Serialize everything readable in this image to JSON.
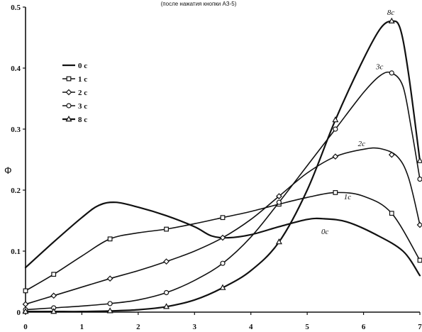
{
  "chart_data": {
    "type": "line",
    "title": "(после нажатия кнопки АЗ-5)",
    "xlabel": "",
    "ylabel": "Ф",
    "xlim": [
      0,
      7
    ],
    "ylim": [
      0,
      0.5
    ],
    "x_ticks": [
      "0",
      "1",
      "2",
      "3",
      "4",
      "5",
      "6",
      "7"
    ],
    "y_ticks": [
      "0",
      "0.1",
      "0.2",
      "0.3",
      "0.4",
      "0.5"
    ],
    "grid": false,
    "legend_position": "left",
    "series": [
      {
        "name": "0 с",
        "tag": "0с",
        "marker": "none",
        "width": 2.2,
        "points": [
          [
            0,
            0.073
          ],
          [
            0.5,
            0.115
          ],
          [
            1,
            0.155
          ],
          [
            1.3,
            0.175
          ],
          [
            1.6,
            0.18
          ],
          [
            2,
            0.172
          ],
          [
            2.5,
            0.158
          ],
          [
            3,
            0.14
          ],
          [
            3.3,
            0.125
          ],
          [
            3.6,
            0.122
          ],
          [
            4,
            0.127
          ],
          [
            4.5,
            0.14
          ],
          [
            5,
            0.152
          ],
          [
            5.3,
            0.153
          ],
          [
            5.7,
            0.148
          ],
          [
            6.2,
            0.128
          ],
          [
            6.7,
            0.1
          ],
          [
            7,
            0.06
          ]
        ],
        "markers": []
      },
      {
        "name": "1 с",
        "tag": "1с",
        "marker": "square",
        "width": 1.6,
        "points": [
          [
            0,
            0.035
          ],
          [
            0.5,
            0.062
          ],
          [
            1,
            0.092
          ],
          [
            1.5,
            0.12
          ],
          [
            2,
            0.13
          ],
          [
            2.5,
            0.136
          ],
          [
            3,
            0.145
          ],
          [
            3.5,
            0.155
          ],
          [
            4,
            0.165
          ],
          [
            4.5,
            0.177
          ],
          [
            5,
            0.188
          ],
          [
            5.5,
            0.196
          ],
          [
            6,
            0.19
          ],
          [
            6.5,
            0.162
          ],
          [
            7,
            0.085
          ]
        ],
        "markers": [
          [
            0,
            0.035
          ],
          [
            0.5,
            0.062
          ],
          [
            1.5,
            0.12
          ],
          [
            2.5,
            0.136
          ],
          [
            3.5,
            0.155
          ],
          [
            4.5,
            0.177
          ],
          [
            5.5,
            0.196
          ],
          [
            6.5,
            0.162
          ],
          [
            7,
            0.085
          ]
        ]
      },
      {
        "name": "2 с",
        "tag": "2с",
        "marker": "diamond",
        "width": 1.6,
        "points": [
          [
            0,
            0.013
          ],
          [
            0.5,
            0.027
          ],
          [
            1,
            0.041
          ],
          [
            1.5,
            0.055
          ],
          [
            2,
            0.068
          ],
          [
            2.5,
            0.083
          ],
          [
            3,
            0.1
          ],
          [
            3.5,
            0.122
          ],
          [
            4,
            0.152
          ],
          [
            4.5,
            0.19
          ],
          [
            5,
            0.228
          ],
          [
            5.5,
            0.255
          ],
          [
            6,
            0.267
          ],
          [
            6.3,
            0.268
          ],
          [
            6.6,
            0.255
          ],
          [
            6.8,
            0.22
          ],
          [
            7,
            0.143
          ]
        ],
        "markers": [
          [
            0,
            0.013
          ],
          [
            0.5,
            0.027
          ],
          [
            1.5,
            0.055
          ],
          [
            2.5,
            0.083
          ],
          [
            3.5,
            0.122
          ],
          [
            4.5,
            0.19
          ],
          [
            5.5,
            0.255
          ],
          [
            6.5,
            0.258
          ],
          [
            7,
            0.143
          ]
        ]
      },
      {
        "name": "3 с",
        "tag": "3с",
        "marker": "circle",
        "width": 1.6,
        "points": [
          [
            0,
            0.004
          ],
          [
            0.5,
            0.007
          ],
          [
            1,
            0.01
          ],
          [
            1.5,
            0.014
          ],
          [
            2,
            0.02
          ],
          [
            2.5,
            0.032
          ],
          [
            3,
            0.052
          ],
          [
            3.5,
            0.08
          ],
          [
            4,
            0.123
          ],
          [
            4.5,
            0.18
          ],
          [
            5,
            0.24
          ],
          [
            5.5,
            0.3
          ],
          [
            6,
            0.36
          ],
          [
            6.3,
            0.388
          ],
          [
            6.5,
            0.392
          ],
          [
            6.7,
            0.37
          ],
          [
            6.85,
            0.3
          ],
          [
            7,
            0.218
          ]
        ],
        "markers": [
          [
            0,
            0.004
          ],
          [
            0.5,
            0.007
          ],
          [
            1.5,
            0.014
          ],
          [
            2.5,
            0.032
          ],
          [
            3.5,
            0.08
          ],
          [
            4.5,
            0.18
          ],
          [
            5.5,
            0.3
          ],
          [
            6.5,
            0.392
          ],
          [
            7,
            0.218
          ]
        ]
      },
      {
        "name": "8 с",
        "tag": "8с",
        "marker": "triangle",
        "width": 2.2,
        "points": [
          [
            0,
            0.001
          ],
          [
            0.5,
            0.001
          ],
          [
            1,
            0.001
          ],
          [
            1.5,
            0.002
          ],
          [
            2,
            0.004
          ],
          [
            2.5,
            0.009
          ],
          [
            3,
            0.02
          ],
          [
            3.5,
            0.04
          ],
          [
            4,
            0.068
          ],
          [
            4.5,
            0.115
          ],
          [
            5,
            0.2
          ],
          [
            5.5,
            0.315
          ],
          [
            6,
            0.415
          ],
          [
            6.3,
            0.465
          ],
          [
            6.5,
            0.477
          ],
          [
            6.65,
            0.465
          ],
          [
            6.8,
            0.39
          ],
          [
            7,
            0.248
          ]
        ],
        "markers": [
          [
            0,
            0.001
          ],
          [
            0.5,
            0.001
          ],
          [
            1.5,
            0.002
          ],
          [
            2.5,
            0.009
          ],
          [
            3.5,
            0.04
          ],
          [
            4.5,
            0.115
          ],
          [
            5.5,
            0.315
          ],
          [
            6.5,
            0.477
          ],
          [
            7,
            0.248
          ]
        ]
      }
    ]
  }
}
